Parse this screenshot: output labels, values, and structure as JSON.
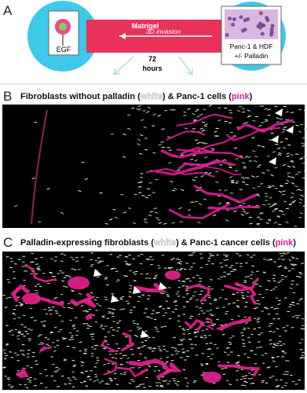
{
  "panel_a": {
    "label": "A",
    "tube_label": "Matrigel",
    "arrow_label": "3D invasion",
    "time": "72",
    "time_unit": "hours",
    "left_label": "EGF",
    "right_label": [
      "Panc-1 & HDF",
      "+/- Palladin"
    ]
  },
  "panel_b": {
    "label": "B",
    "caption": [
      "Fibroblasts without palladin (",
      "white",
      ") & Panc-1 cells (",
      "pink",
      ")"
    ]
  },
  "panel_c": {
    "label": "C",
    "caption": [
      "Palladin-expressing fibroblasts (",
      "white",
      ") & Panc-1 cancer cells (",
      "pink",
      ")"
    ]
  }
}
